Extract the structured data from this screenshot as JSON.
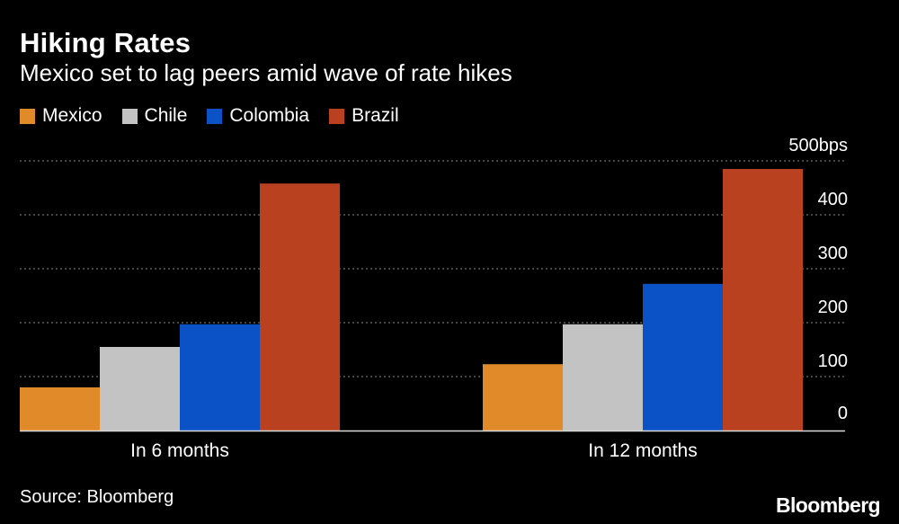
{
  "header": {
    "title": "Hiking Rates",
    "subtitle": "Mexico set to lag peers amid wave of rate hikes"
  },
  "legend": [
    {
      "label": "Mexico",
      "color": "#E08A29"
    },
    {
      "label": "Chile",
      "color": "#C3C3C3"
    },
    {
      "label": "Colombia",
      "color": "#0A52C6"
    },
    {
      "label": "Brazil",
      "color": "#B9411F"
    }
  ],
  "footer": {
    "source": "Source: Bloomberg",
    "logo": "Bloomberg"
  },
  "chart_data": {
    "type": "bar",
    "categories": [
      "In 6 months",
      "In 12 months"
    ],
    "series": [
      {
        "name": "Mexico",
        "color": "#E08A29",
        "values": [
          80,
          123
        ]
      },
      {
        "name": "Chile",
        "color": "#C3C3C3",
        "values": [
          155,
          197
        ]
      },
      {
        "name": "Colombia",
        "color": "#0A52C6",
        "values": [
          197,
          272
        ]
      },
      {
        "name": "Brazil",
        "color": "#B9411F",
        "values": [
          458,
          485
        ]
      }
    ],
    "yticks": [
      0,
      100,
      200,
      300,
      400,
      500
    ],
    "ytick_labels": [
      "0",
      "100",
      "200",
      "300",
      "400",
      "500bps"
    ],
    "ylim": [
      0,
      500
    ],
    "grid": true,
    "legend_position": "top-left",
    "xlabel": "",
    "ylabel": ""
  }
}
